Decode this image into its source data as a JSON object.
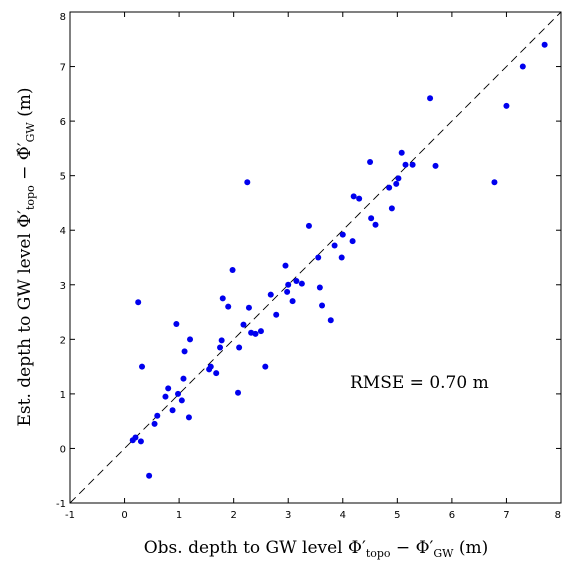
{
  "chart_data": {
    "type": "scatter",
    "title": "",
    "xlabel": {
      "prefix": "Obs.  depth to GW level ",
      "symbol": "Φ′",
      "sub1": "topo",
      "minus": " − Φ′",
      "sub2": "GW",
      "unit": " (m)"
    },
    "ylabel": {
      "prefix": "Est.  depth to GW level ",
      "symbol": "Φ′",
      "sub1": "topo",
      "minus": " − Φ̂′",
      "sub2": "GW",
      "unit": " (m)"
    },
    "xlim": [
      -1,
      8
    ],
    "ylim": [
      -1,
      8
    ],
    "xticks": [
      -1,
      0,
      1,
      2,
      3,
      4,
      5,
      6,
      7,
      8
    ],
    "yticks": [
      -1,
      0,
      1,
      2,
      3,
      4,
      5,
      6,
      7,
      8
    ],
    "grid": false,
    "reference_line": {
      "type": "identity",
      "style": "dashed",
      "color": "#000000"
    },
    "marker_color": "#0000ee",
    "annotation": "RMSE = 0.70 m",
    "points": [
      [
        0.15,
        0.15
      ],
      [
        0.2,
        0.2
      ],
      [
        0.3,
        0.13
      ],
      [
        0.25,
        2.68
      ],
      [
        0.32,
        1.5
      ],
      [
        0.45,
        -0.5
      ],
      [
        0.55,
        0.45
      ],
      [
        0.6,
        0.6
      ],
      [
        0.75,
        0.95
      ],
      [
        0.8,
        1.1
      ],
      [
        0.88,
        0.7
      ],
      [
        0.95,
        2.28
      ],
      [
        0.98,
        1.0
      ],
      [
        1.05,
        0.88
      ],
      [
        1.08,
        1.28
      ],
      [
        1.1,
        1.78
      ],
      [
        1.18,
        0.57
      ],
      [
        1.2,
        2.0
      ],
      [
        1.55,
        1.45
      ],
      [
        1.58,
        1.5
      ],
      [
        1.68,
        1.38
      ],
      [
        1.75,
        1.85
      ],
      [
        1.78,
        1.98
      ],
      [
        1.8,
        2.75
      ],
      [
        1.9,
        2.6
      ],
      [
        1.98,
        3.27
      ],
      [
        2.08,
        1.02
      ],
      [
        2.1,
        1.85
      ],
      [
        2.18,
        2.27
      ],
      [
        2.25,
        4.88
      ],
      [
        2.28,
        2.58
      ],
      [
        2.32,
        2.12
      ],
      [
        2.4,
        2.1
      ],
      [
        2.5,
        2.15
      ],
      [
        2.58,
        1.5
      ],
      [
        2.68,
        2.82
      ],
      [
        2.78,
        2.45
      ],
      [
        2.95,
        3.35
      ],
      [
        2.98,
        2.87
      ],
      [
        3.0,
        3.0
      ],
      [
        3.08,
        2.7
      ],
      [
        3.15,
        3.07
      ],
      [
        3.25,
        3.02
      ],
      [
        3.38,
        4.08
      ],
      [
        3.55,
        3.5
      ],
      [
        3.58,
        2.95
      ],
      [
        3.62,
        2.62
      ],
      [
        3.78,
        2.35
      ],
      [
        3.85,
        3.72
      ],
      [
        3.98,
        3.5
      ],
      [
        4.0,
        3.92
      ],
      [
        4.18,
        3.8
      ],
      [
        4.2,
        4.62
      ],
      [
        4.3,
        4.58
      ],
      [
        4.5,
        5.25
      ],
      [
        4.52,
        4.22
      ],
      [
        4.6,
        4.1
      ],
      [
        4.85,
        4.78
      ],
      [
        4.9,
        4.4
      ],
      [
        4.98,
        4.85
      ],
      [
        5.02,
        4.95
      ],
      [
        5.08,
        5.42
      ],
      [
        5.15,
        5.2
      ],
      [
        5.28,
        5.2
      ],
      [
        5.6,
        6.42
      ],
      [
        5.7,
        5.18
      ],
      [
        6.78,
        4.88
      ],
      [
        7.0,
        6.28
      ],
      [
        7.3,
        7.0
      ],
      [
        7.7,
        7.4
      ]
    ]
  }
}
